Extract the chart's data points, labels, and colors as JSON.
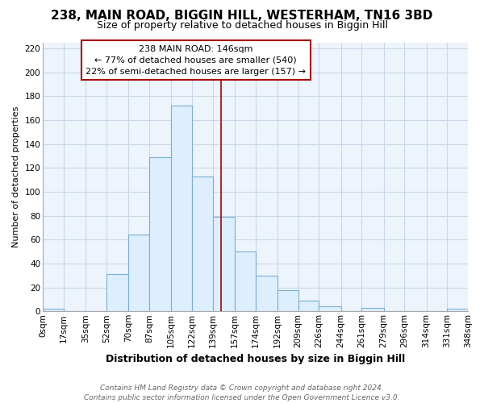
{
  "title1": "238, MAIN ROAD, BIGGIN HILL, WESTERHAM, TN16 3BD",
  "title2": "Size of property relative to detached houses in Biggin Hill",
  "xlabel": "Distribution of detached houses by size in Biggin Hill",
  "ylabel": "Number of detached properties",
  "footer1": "Contains HM Land Registry data © Crown copyright and database right 2024.",
  "footer2": "Contains public sector information licensed under the Open Government Licence v3.0.",
  "annotation_line1": "238 MAIN ROAD: 146sqm",
  "annotation_line2": "← 77% of detached houses are smaller (540)",
  "annotation_line3": "22% of semi-detached houses are larger (157) →",
  "property_size": 146,
  "bar_edges": [
    0,
    17,
    35,
    52,
    70,
    87,
    105,
    122,
    139,
    157,
    174,
    192,
    209,
    226,
    244,
    261,
    279,
    296,
    314,
    331,
    348
  ],
  "bar_heights": [
    2,
    0,
    0,
    31,
    64,
    129,
    172,
    113,
    79,
    50,
    30,
    18,
    9,
    4,
    0,
    3,
    0,
    0,
    0,
    2
  ],
  "bar_color": "#ddeeff",
  "bar_edge_color": "#7bafd4",
  "vline_color": "#aa0000",
  "grid_color": "#c8d8e8",
  "bg_color": "#eef4fb",
  "ylim": [
    0,
    225
  ],
  "yticks": [
    0,
    20,
    40,
    60,
    80,
    100,
    120,
    140,
    160,
    180,
    200,
    220
  ],
  "annotation_box_color": "#ffffff",
  "annotation_box_edge": "#aa0000",
  "title1_fontsize": 11,
  "title2_fontsize": 9,
  "xlabel_fontsize": 9,
  "ylabel_fontsize": 8,
  "tick_fontsize": 7.5,
  "ann_fontsize": 8,
  "footer_fontsize": 6.5
}
